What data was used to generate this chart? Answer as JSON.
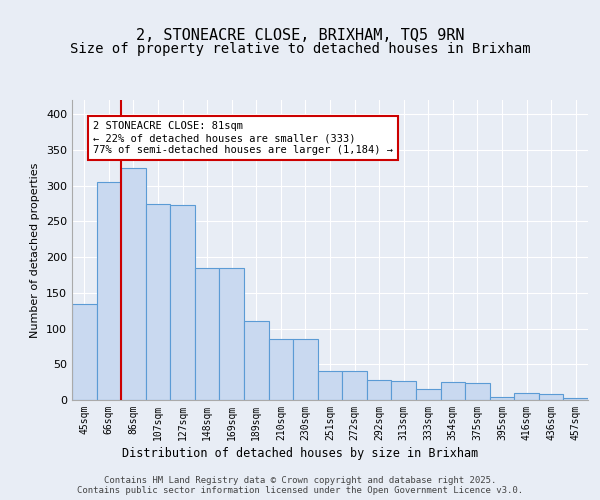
{
  "title_line1": "2, STONEACRE CLOSE, BRIXHAM, TQ5 9RN",
  "title_line2": "Size of property relative to detached houses in Brixham",
  "xlabel": "Distribution of detached houses by size in Brixham",
  "ylabel": "Number of detached properties",
  "bar_labels": [
    "45sqm",
    "66sqm",
    "86sqm",
    "107sqm",
    "127sqm",
    "148sqm",
    "169sqm",
    "189sqm",
    "210sqm",
    "230sqm",
    "251sqm",
    "272sqm",
    "292sqm",
    "313sqm",
    "333sqm",
    "354sqm",
    "375sqm",
    "395sqm",
    "416sqm",
    "436sqm",
    "457sqm"
  ],
  "bar_values": [
    135,
    305,
    325,
    275,
    273,
    185,
    185,
    110,
    85,
    85,
    40,
    40,
    28,
    27,
    15,
    25,
    24,
    4,
    10,
    9,
    3
  ],
  "bar_color": "#c9d9f0",
  "bar_edge_color": "#5b9bd5",
  "bar_width": 1.0,
  "red_line_x": 1.5,
  "red_line_color": "#cc0000",
  "annotation_text": "2 STONEACRE CLOSE: 81sqm\n← 22% of detached houses are smaller (333)\n77% of semi-detached houses are larger (1,184) →",
  "annotation_box_color": "#ffffff",
  "annotation_box_edge": "#cc0000",
  "ylim": [
    0,
    420
  ],
  "yticks": [
    0,
    50,
    100,
    150,
    200,
    250,
    300,
    350,
    400
  ],
  "background_color": "#e8edf5",
  "plot_bg_color": "#e8edf5",
  "footer_text": "Contains HM Land Registry data © Crown copyright and database right 2025.\nContains public sector information licensed under the Open Government Licence v3.0.",
  "grid_color": "#ffffff",
  "title_fontsize": 11,
  "subtitle_fontsize": 10
}
